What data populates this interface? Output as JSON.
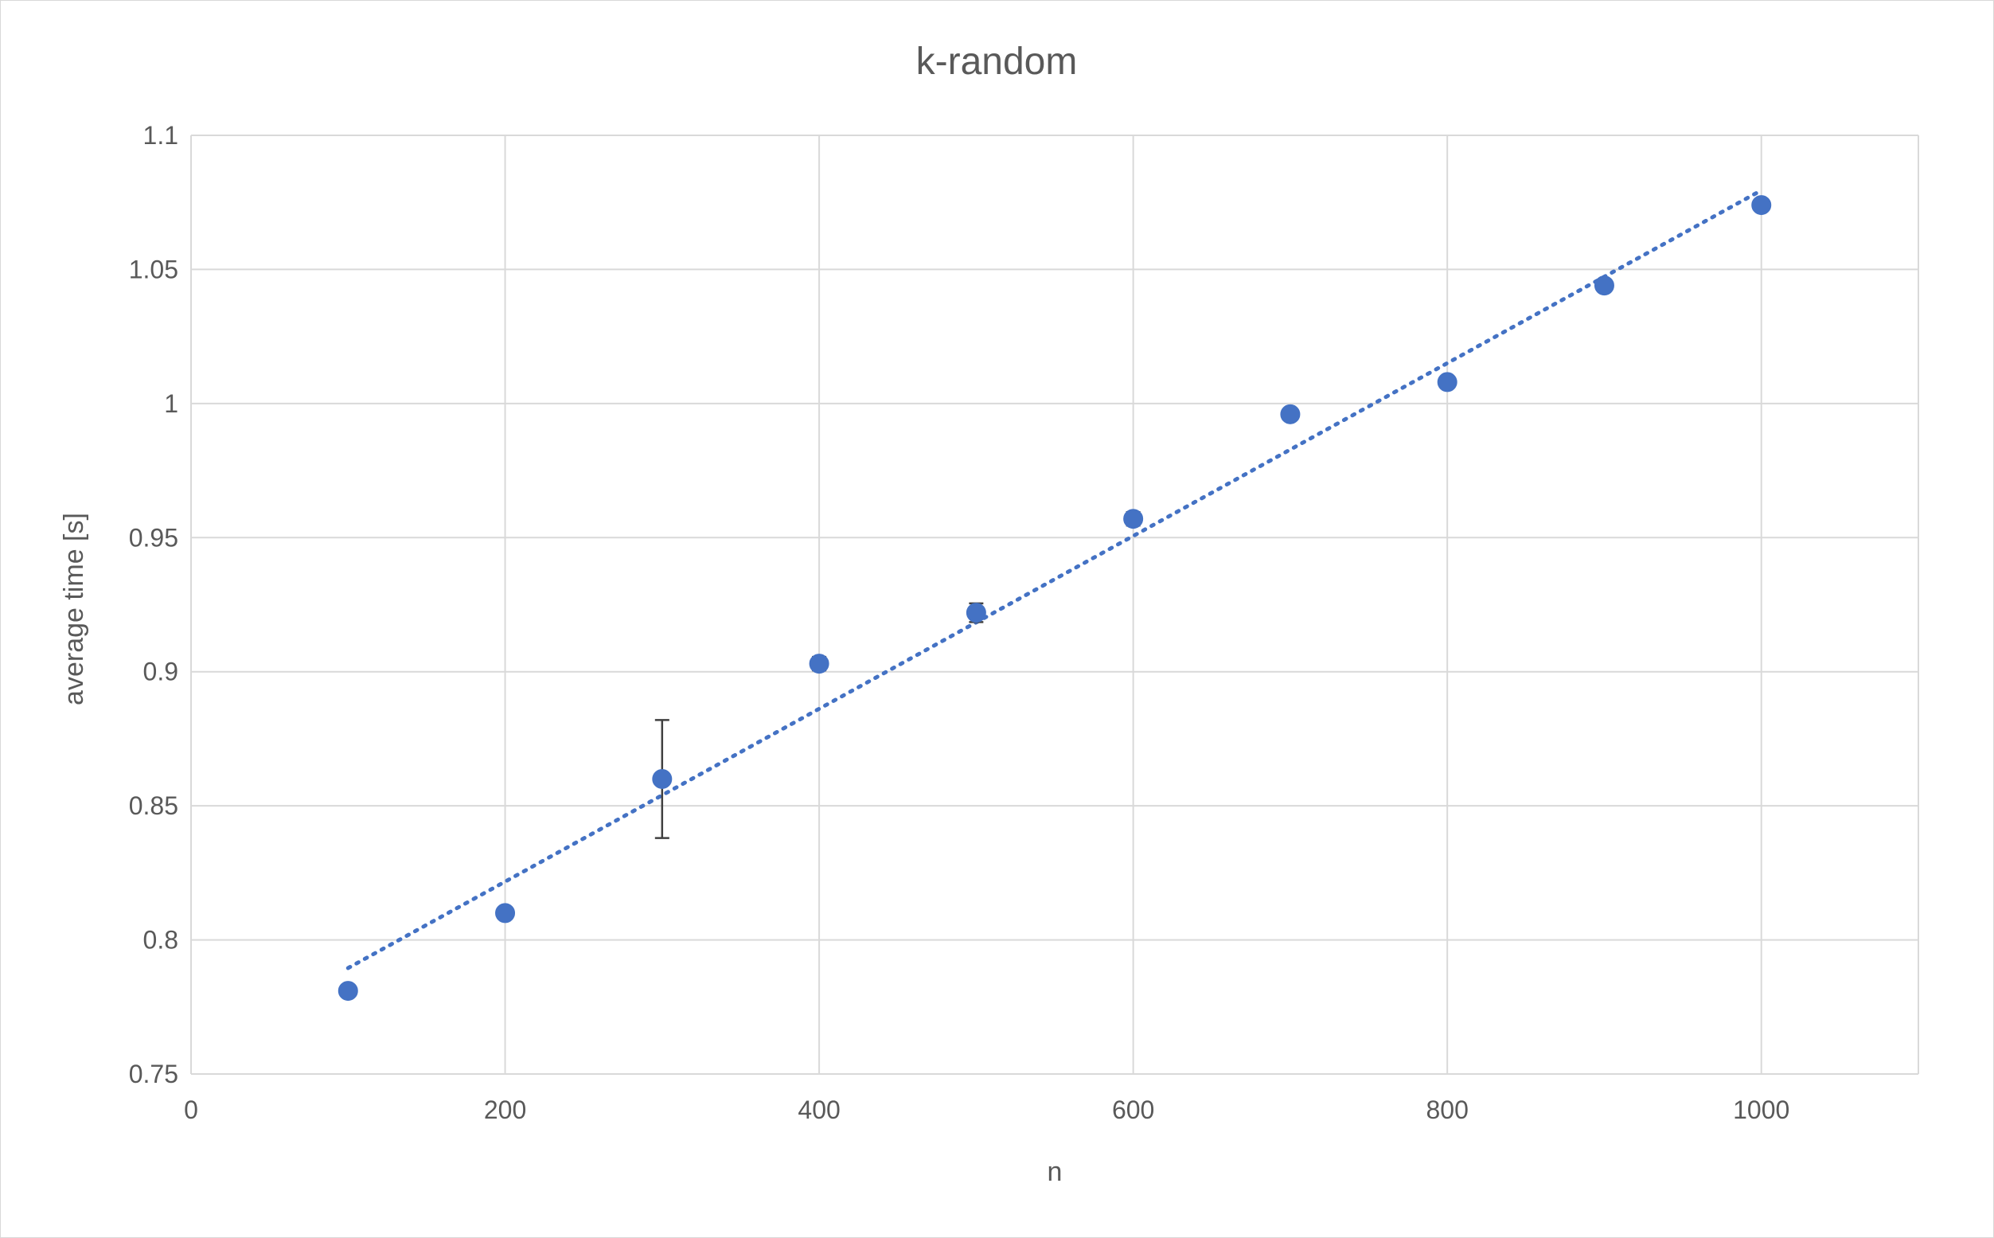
{
  "chart_data": {
    "type": "scatter",
    "title": "k-random",
    "xlabel": "n",
    "ylabel": "average time [s]",
    "xlim": [
      0,
      1100
    ],
    "ylim": [
      0.75,
      1.1
    ],
    "x_ticks": [
      0,
      200,
      400,
      600,
      800,
      1000
    ],
    "x_tick_labels": [
      "0",
      "200",
      "400",
      "600",
      "800",
      "1000"
    ],
    "y_ticks": [
      0.75,
      0.8,
      0.85,
      0.9,
      0.95,
      1.0,
      1.05,
      1.1
    ],
    "y_tick_labels": [
      "0.75",
      "0.8",
      "0.85",
      "0.9",
      "0.95",
      "1",
      "1.05",
      "1.1"
    ],
    "grid": true,
    "legend": "none",
    "series": [
      {
        "color": "#4472c4",
        "points": [
          {
            "x": 100,
            "y": 0.781,
            "err": 0.001
          },
          {
            "x": 200,
            "y": 0.81,
            "err": 0.001
          },
          {
            "x": 300,
            "y": 0.86,
            "err": 0.022
          },
          {
            "x": 400,
            "y": 0.903,
            "err": 0.0025
          },
          {
            "x": 500,
            "y": 0.922,
            "err": 0.0035
          },
          {
            "x": 600,
            "y": 0.957,
            "err": 0.0025
          },
          {
            "x": 700,
            "y": 0.996,
            "err": 0.0015
          },
          {
            "x": 800,
            "y": 1.008,
            "err": 0.001
          },
          {
            "x": 900,
            "y": 1.044,
            "err": 0.001
          },
          {
            "x": 1000,
            "y": 1.074,
            "err": 0.001
          }
        ]
      }
    ],
    "trendline": {
      "type": "linear",
      "style": "dotted",
      "color": "#4472c4",
      "from": {
        "x": 100,
        "y": 0.7895
      },
      "to": {
        "x": 1000,
        "y": 1.0795
      }
    }
  }
}
